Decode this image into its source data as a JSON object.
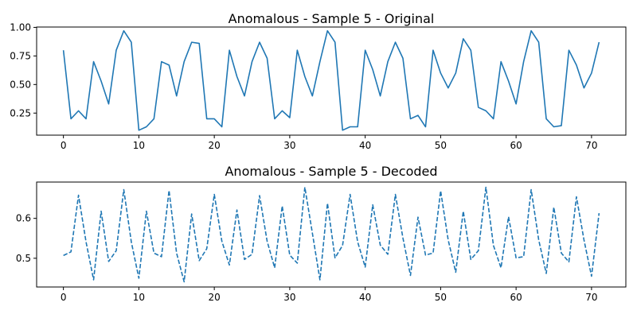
{
  "chart_data": [
    {
      "type": "line",
      "title": "Anomalous - Sample 5 - Original",
      "xlabel": "",
      "ylabel": "",
      "xlim": [
        -3.55,
        74.55
      ],
      "ylim": [
        0.057,
        1.003
      ],
      "xticks": [
        0,
        10,
        20,
        30,
        40,
        50,
        60,
        70
      ],
      "yticks": [
        0.25,
        0.5,
        0.75,
        1.0
      ],
      "ytick_format": 2,
      "grid": false,
      "legend": "none",
      "color": "#1f77b4",
      "linestyle": "solid",
      "x": [
        0,
        1,
        2,
        3,
        4,
        5,
        6,
        7,
        8,
        9,
        10,
        11,
        12,
        13,
        14,
        15,
        16,
        17,
        18,
        19,
        20,
        21,
        22,
        23,
        24,
        25,
        26,
        27,
        28,
        29,
        30,
        31,
        32,
        33,
        34,
        35,
        36,
        37,
        38,
        39,
        40,
        41,
        42,
        43,
        44,
        45,
        46,
        47,
        48,
        49,
        50,
        51,
        52,
        53,
        54,
        55,
        56,
        57,
        58,
        59,
        60,
        61,
        62,
        63,
        64,
        65,
        66,
        67,
        68,
        69,
        70,
        71
      ],
      "values": [
        0.8,
        0.2,
        0.27,
        0.2,
        0.7,
        0.53,
        0.33,
        0.8,
        0.97,
        0.87,
        0.1,
        0.13,
        0.2,
        0.7,
        0.67,
        0.4,
        0.7,
        0.87,
        0.86,
        0.2,
        0.2,
        0.13,
        0.8,
        0.57,
        0.4,
        0.7,
        0.87,
        0.73,
        0.2,
        0.27,
        0.21,
        0.8,
        0.57,
        0.4,
        0.7,
        0.97,
        0.87,
        0.1,
        0.13,
        0.13,
        0.8,
        0.63,
        0.4,
        0.7,
        0.87,
        0.73,
        0.2,
        0.23,
        0.13,
        0.8,
        0.6,
        0.47,
        0.6,
        0.9,
        0.8,
        0.3,
        0.27,
        0.2,
        0.7,
        0.53,
        0.33,
        0.7,
        0.97,
        0.87,
        0.2,
        0.13,
        0.14,
        0.8,
        0.67,
        0.47,
        0.6,
        0.87
      ]
    },
    {
      "type": "line",
      "title": "Anomalous - Sample 5 - Decoded",
      "xlabel": "",
      "ylabel": "",
      "xlim": [
        -3.55,
        74.55
      ],
      "ylim": [
        0.428,
        0.691
      ],
      "xticks": [
        0,
        10,
        20,
        30,
        40,
        50,
        60,
        70
      ],
      "yticks": [
        0.5,
        0.6
      ],
      "ytick_format": 1,
      "grid": false,
      "legend": "none",
      "color": "#1f77b4",
      "linestyle": "dashed",
      "x": [
        0,
        1,
        2,
        3,
        4,
        5,
        6,
        7,
        8,
        9,
        10,
        11,
        12,
        13,
        14,
        15,
        16,
        17,
        18,
        19,
        20,
        21,
        22,
        23,
        24,
        25,
        26,
        27,
        28,
        29,
        30,
        31,
        32,
        33,
        34,
        35,
        36,
        37,
        38,
        39,
        40,
        41,
        42,
        43,
        44,
        45,
        46,
        47,
        48,
        49,
        50,
        51,
        52,
        53,
        54,
        55,
        56,
        57,
        58,
        59,
        60,
        61,
        62,
        63,
        64,
        65,
        66,
        67,
        68,
        69,
        70,
        71
      ],
      "values": [
        0.507,
        0.516,
        0.658,
        0.541,
        0.446,
        0.618,
        0.492,
        0.519,
        0.672,
        0.541,
        0.45,
        0.618,
        0.513,
        0.504,
        0.67,
        0.513,
        0.441,
        0.611,
        0.494,
        0.524,
        0.66,
        0.543,
        0.483,
        0.621,
        0.497,
        0.51,
        0.657,
        0.543,
        0.476,
        0.631,
        0.508,
        0.488,
        0.678,
        0.563,
        0.446,
        0.638,
        0.501,
        0.532,
        0.66,
        0.541,
        0.478,
        0.634,
        0.533,
        0.51,
        0.66,
        0.551,
        0.457,
        0.603,
        0.508,
        0.513,
        0.669,
        0.546,
        0.465,
        0.618,
        0.497,
        0.519,
        0.678,
        0.532,
        0.476,
        0.604,
        0.501,
        0.504,
        0.672,
        0.546,
        0.462,
        0.628,
        0.513,
        0.491,
        0.654,
        0.546,
        0.455,
        0.613
      ]
    }
  ]
}
